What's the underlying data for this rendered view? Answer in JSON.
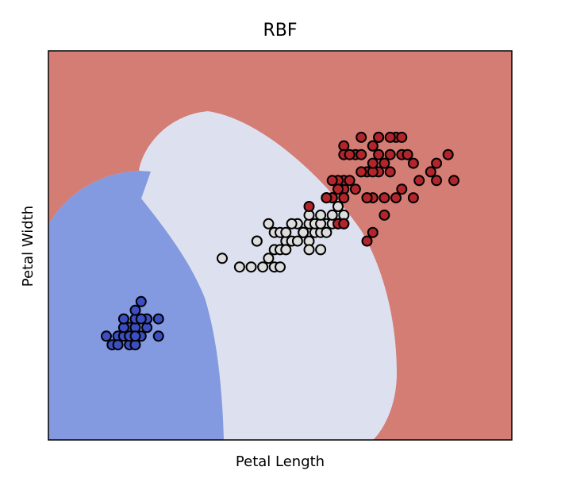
{
  "chart_data": {
    "type": "scatter",
    "title": "RBF",
    "xlabel": "Petal Length",
    "ylabel": "Petal Width",
    "xlim": [
      0,
      8
    ],
    "ylim": [
      -1,
      3.5
    ],
    "xticks": "none",
    "yticks": "none",
    "grid": false,
    "legend": "none",
    "background_regions": [
      {
        "class": "setosa",
        "color": "#8399e0"
      },
      {
        "class": "versicolor",
        "color": "#dde1ef"
      },
      {
        "class": "virginica",
        "color": "#d47d74"
      }
    ],
    "series": [
      {
        "class": "setosa",
        "color": "#3c4fc2",
        "points": [
          [
            1.0,
            0.2
          ],
          [
            1.2,
            0.2
          ],
          [
            1.3,
            0.2
          ],
          [
            1.4,
            0.2
          ],
          [
            1.5,
            0.2
          ],
          [
            1.6,
            0.2
          ],
          [
            1.4,
            0.3
          ],
          [
            1.3,
            0.3
          ],
          [
            1.5,
            0.3
          ],
          [
            1.7,
            0.3
          ],
          [
            1.9,
            0.2
          ],
          [
            1.5,
            0.4
          ],
          [
            1.3,
            0.4
          ],
          [
            1.7,
            0.4
          ],
          [
            1.6,
            0.4
          ],
          [
            1.4,
            0.1
          ],
          [
            1.5,
            0.1
          ],
          [
            1.1,
            0.1
          ],
          [
            1.4,
            0.2
          ],
          [
            1.5,
            0.5
          ],
          [
            1.6,
            0.6
          ],
          [
            1.9,
            0.4
          ],
          [
            1.5,
            0.2
          ],
          [
            1.2,
            0.1
          ]
        ]
      },
      {
        "class": "versicolor",
        "color": "#dddddd",
        "points": [
          [
            3.0,
            1.1
          ],
          [
            3.3,
            1.0
          ],
          [
            3.5,
            1.0
          ],
          [
            3.7,
            1.0
          ],
          [
            3.9,
            1.0
          ],
          [
            4.0,
            1.0
          ],
          [
            3.6,
            1.3
          ],
          [
            3.8,
            1.1
          ],
          [
            3.9,
            1.2
          ],
          [
            4.0,
            1.2
          ],
          [
            4.1,
            1.3
          ],
          [
            4.2,
            1.3
          ],
          [
            4.3,
            1.3
          ],
          [
            4.4,
            1.4
          ],
          [
            4.5,
            1.3
          ],
          [
            4.6,
            1.4
          ],
          [
            4.7,
            1.4
          ],
          [
            4.8,
            1.5
          ],
          [
            4.9,
            1.5
          ],
          [
            5.0,
            1.7
          ],
          [
            5.1,
            1.6
          ],
          [
            4.5,
            1.5
          ],
          [
            4.6,
            1.5
          ],
          [
            4.7,
            1.5
          ],
          [
            4.3,
            1.5
          ],
          [
            4.4,
            1.4
          ],
          [
            4.2,
            1.5
          ],
          [
            3.6,
            1.3
          ],
          [
            3.9,
            1.4
          ],
          [
            4.0,
            1.4
          ],
          [
            4.1,
            1.4
          ],
          [
            4.5,
            1.6
          ],
          [
            4.8,
            1.8
          ],
          [
            4.9,
            1.6
          ],
          [
            4.7,
            1.6
          ],
          [
            4.1,
            1.2
          ],
          [
            4.8,
            1.4
          ],
          [
            4.5,
            1.2
          ],
          [
            4.7,
            1.2
          ],
          [
            3.8,
            1.5
          ],
          [
            5.0,
            1.5
          ],
          [
            5.1,
            1.5
          ]
        ]
      },
      {
        "class": "virginica",
        "color": "#b2262b",
        "points": [
          [
            6.0,
            2.5
          ],
          [
            5.1,
            1.9
          ],
          [
            5.9,
            2.1
          ],
          [
            5.6,
            1.8
          ],
          [
            5.8,
            2.2
          ],
          [
            6.6,
            2.1
          ],
          [
            4.5,
            1.7
          ],
          [
            6.3,
            1.8
          ],
          [
            5.8,
            1.8
          ],
          [
            6.1,
            2.5
          ],
          [
            5.1,
            2.0
          ],
          [
            5.3,
            1.9
          ],
          [
            5.5,
            2.1
          ],
          [
            5.0,
            2.0
          ],
          [
            5.1,
            2.4
          ],
          [
            5.3,
            2.3
          ],
          [
            5.5,
            1.8
          ],
          [
            6.7,
            2.2
          ],
          [
            6.9,
            2.3
          ],
          [
            5.0,
            1.5
          ],
          [
            5.7,
            2.3
          ],
          [
            4.9,
            2.0
          ],
          [
            6.7,
            2.0
          ],
          [
            4.9,
            1.8
          ],
          [
            5.7,
            2.1
          ],
          [
            6.0,
            1.8
          ],
          [
            4.8,
            1.8
          ],
          [
            4.9,
            1.8
          ],
          [
            5.6,
            2.1
          ],
          [
            5.8,
            1.6
          ],
          [
            6.1,
            1.9
          ],
          [
            6.4,
            2.0
          ],
          [
            5.6,
            2.2
          ],
          [
            5.1,
            1.5
          ],
          [
            5.6,
            1.4
          ],
          [
            6.1,
            2.3
          ],
          [
            5.6,
            2.4
          ],
          [
            5.5,
            1.8
          ],
          [
            4.8,
            1.8
          ],
          [
            5.4,
            2.1
          ],
          [
            5.6,
            2.4
          ],
          [
            5.1,
            2.3
          ],
          [
            5.9,
            2.3
          ],
          [
            5.7,
            2.5
          ],
          [
            5.2,
            2.3
          ],
          [
            5.0,
            1.9
          ],
          [
            5.2,
            2.0
          ],
          [
            5.4,
            2.3
          ],
          [
            5.1,
            1.8
          ],
          [
            5.5,
            1.3
          ],
          [
            5.9,
            2.5
          ],
          [
            6.3,
            2.2
          ],
          [
            7.0,
            2.0
          ],
          [
            6.2,
            2.3
          ],
          [
            5.4,
            2.5
          ],
          [
            5.7,
            2.5
          ]
        ]
      }
    ]
  }
}
